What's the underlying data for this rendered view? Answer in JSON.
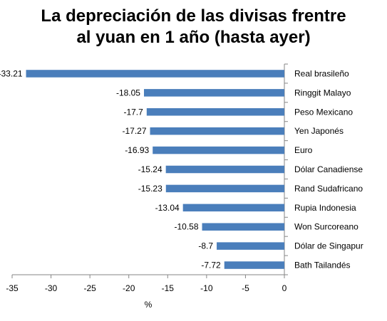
{
  "chart_data": {
    "type": "bar",
    "orientation": "horizontal",
    "title_lines": [
      "La depreciación de las divisas frentre",
      "al yuan en 1 año (hasta ayer)"
    ],
    "categories": [
      "Real brasileño",
      "Ringgit Malayo",
      "Peso Mexicano",
      "Yen Japonés",
      "Euro",
      "Dólar Canadiense",
      "Rand Sudafricano",
      "Rupia Indonesia",
      "Won Surcoreano",
      "Dólar de Singapur",
      "Bath Tailandés"
    ],
    "values": [
      -33.21,
      -18.05,
      -17.7,
      -17.27,
      -16.93,
      -15.24,
      -15.23,
      -13.04,
      -10.58,
      -8.7,
      -7.72
    ],
    "data_labels": [
      "-33.21",
      "-18.05",
      "-17.7",
      "-17.27",
      "-16.93",
      "-15.24",
      "-15.23",
      "-13.04",
      "-10.58",
      "-8.7",
      "-7.72"
    ],
    "xlim": [
      -35,
      0
    ],
    "x_ticks": [
      -35,
      -30,
      -25,
      -20,
      -15,
      -10,
      -5,
      0
    ],
    "x_tick_labels": [
      "-35",
      "-30",
      "-25",
      "-20",
      "-15",
      "-10",
      "-5",
      "0"
    ],
    "xlabel": "%",
    "ylabel": "",
    "grid": false,
    "legend": "none",
    "bar_color": "#4a7ebb"
  }
}
